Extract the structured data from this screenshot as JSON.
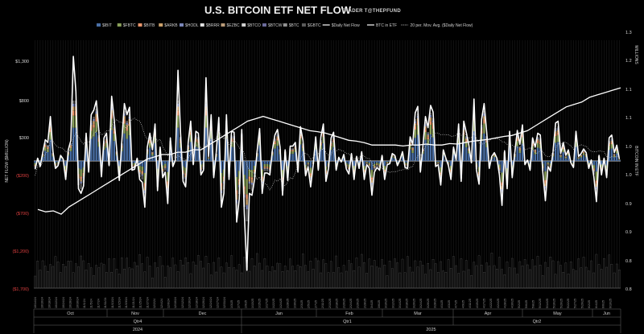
{
  "chart_data": {
    "type": "bar",
    "title": "U.S. BITCOIN ETF NET FLOW",
    "subtitle": "TRADER T@THEPFUND",
    "ylabel_left": "NET FLOW ($MILLION)",
    "ylabel_right": "BITCOIN IN ETF",
    "right_axis_unit": "MILLIONS",
    "ylim_left": [
      -1700,
      1800
    ],
    "ylim_right": [
      0.8,
      1.35
    ],
    "left_ticks": [
      {
        "label": "$1,300",
        "value": 1300
      },
      {
        "label": "$800",
        "value": 800
      },
      {
        "label": "$300",
        "value": 300
      },
      {
        "label": "($200)",
        "value": -200
      },
      {
        "label": "($700)",
        "value": -700
      },
      {
        "label": "($1,200)",
        "value": -1200
      },
      {
        "label": "($1,700)",
        "value": -1700
      }
    ],
    "right_ticks": [
      "1.3",
      "1.2",
      "1.1",
      "1.1",
      "1.0",
      "1.0",
      "0.9",
      "0.9",
      "0.8",
      "0.8"
    ],
    "legend": [
      {
        "name": "$IBIT",
        "color": "#4a6fa5",
        "kind": "box"
      },
      {
        "name": "$FBTC",
        "color": "#8aa05a",
        "kind": "box"
      },
      {
        "name": "$BITB",
        "color": "#e8956b",
        "kind": "box"
      },
      {
        "name": "$ARKB",
        "color": "#c9a06a",
        "kind": "box"
      },
      {
        "name": "$HODL",
        "color": "#7a86b8",
        "kind": "box"
      },
      {
        "name": "$BRRR",
        "color": "#e0e0e0",
        "kind": "box"
      },
      {
        "name": "$EZBC",
        "color": "#b89a78",
        "kind": "box"
      },
      {
        "name": "$BTCO",
        "color": "#d0d0d0",
        "kind": "box"
      },
      {
        "name": "$BTCW",
        "color": "#6a6a9a",
        "kind": "box"
      },
      {
        "name": "$BTC",
        "color": "#909090",
        "kind": "box"
      },
      {
        "name": "$GBTC",
        "color": "#5a5a5a",
        "kind": "box"
      },
      {
        "name": "$Daily Net Flow",
        "color": "#ffffff",
        "kind": "line"
      },
      {
        "name": "BTC in ETF",
        "color": "#ffffff",
        "kind": "line"
      },
      {
        "name": "20 per. Mov. Avg. ($Daily Net Flow)",
        "color": "#cccccc",
        "kind": "dotted"
      }
    ],
    "x_months": [
      "Oct",
      "Nov",
      "Dec",
      "Jan",
      "Feb",
      "Mar",
      "Apr",
      "May",
      "Jun"
    ],
    "x_quarters": [
      "Qtr4",
      "Qtr1",
      "Qtr2"
    ],
    "x_years": [
      "2024",
      "2025"
    ],
    "date_labels": [
      "10/14/24",
      "10/16/24",
      "10/18/24",
      "10/22/24",
      "10/24/24",
      "10/28/24",
      "10/30/24",
      "11/1/24",
      "11/5/24",
      "11/7/24",
      "11/11/24",
      "11/13/24",
      "11/15/24",
      "11/19/24",
      "11/21/24",
      "11/25/24",
      "11/27/24",
      "12/2/24",
      "12/4/24",
      "12/6/24",
      "12/10/24",
      "12/12/24",
      "12/16/24",
      "12/18/24",
      "12/20/24",
      "12/24/24",
      "12/27/24",
      "12/31/24",
      "1/3/25",
      "1/7/25",
      "1/9/25",
      "1/13/25",
      "1/15/25",
      "1/17/25",
      "1/22/25",
      "1/24/25",
      "1/28/25",
      "1/30/25",
      "2/3/25",
      "2/5/25",
      "2/7/25",
      "2/11/25",
      "2/13/25",
      "2/18/25",
      "2/20/25",
      "2/24/25",
      "2/26/25",
      "2/28/25",
      "3/4/25",
      "3/6/25",
      "3/10/25",
      "3/12/25",
      "3/14/25",
      "3/18/25",
      "3/20/25",
      "3/24/25",
      "3/26/25",
      "3/28/25",
      "4/1/25",
      "4/3/25",
      "4/7/25",
      "4/9/25",
      "4/11/25",
      "4/15/25",
      "4/17/25",
      "4/22/25",
      "4/24/25",
      "4/28/25",
      "4/30/25",
      "5/2/25",
      "5/6/25",
      "5/8/25",
      "5/12/25",
      "5/14/25",
      "5/16/25",
      "5/20/25",
      "5/22/25",
      "5/27/25",
      "5/29/25",
      "6/2/25",
      "6/4/25",
      "6/6/25",
      "6/10/25"
    ],
    "daily_net_flow": [
      -90,
      30,
      -60,
      90,
      230,
      200,
      480,
      100,
      -80,
      -50,
      60,
      20,
      -200,
      120,
      220,
      1180,
      750,
      -300,
      -350,
      -270,
      300,
      -120,
      500,
      550,
      650,
      320,
      -170,
      250,
      300,
      -50,
      700,
      450,
      120,
      -210,
      220,
      620,
      500,
      580,
      -100,
      -90,
      30,
      -200,
      -230,
      -500,
      150,
      300,
      120,
      400,
      -320,
      150,
      -180,
      -120,
      -460,
      250,
      -60,
      10,
      980,
      300,
      -220,
      -280,
      200,
      430,
      -40,
      320,
      300,
      -150,
      -100,
      900,
      50,
      500,
      -180,
      90,
      470,
      -500,
      -350,
      500,
      -200,
      320,
      310,
      -660,
      -410,
      340,
      -570,
      -1180,
      -350,
      -370,
      -200,
      100,
      350,
      -350,
      -130,
      -130,
      -150,
      120,
      280,
      340,
      150,
      -370,
      120,
      -210,
      160,
      160,
      200,
      -120,
      370,
      220,
      -160,
      -60,
      -280,
      -40,
      260,
      -100,
      260,
      400,
      -220,
      -80,
      250,
      310,
      -100,
      40,
      -10,
      70,
      -90,
      -140,
      80,
      -200,
      50,
      -80,
      100,
      -200,
      -40,
      -80,
      -370,
      -120,
      -70,
      -100,
      60,
      -200,
      -40,
      -30,
      80,
      60,
      -50,
      10,
      100,
      -70,
      -80,
      260,
      180,
      520,
      590,
      -120,
      160,
      480,
      360,
      600,
      530,
      -60,
      -40,
      -260,
      120,
      30,
      -50,
      -200,
      150,
      10,
      400,
      -220,
      430,
      310,
      170,
      -20,
      670,
      -100,
      -250,
      450,
      620,
      310,
      -80,
      50,
      90,
      30,
      -150,
      -480,
      110,
      -300,
      320,
      -180,
      90,
      330,
      180,
      390,
      -40,
      10,
      -100,
      250,
      150,
      300,
      280,
      -120,
      -430,
      -60,
      -110,
      100,
      410,
      430,
      80,
      200,
      60,
      120,
      -20,
      -70,
      320,
      50,
      80,
      130,
      90,
      -80,
      10,
      -170,
      -440,
      60,
      -150,
      30,
      -180,
      250,
      280,
      90,
      170,
      20
    ],
    "btc_in_etf_millions": [
      0.965,
      0.96,
      0.962,
      0.955,
      0.97,
      0.98,
      0.99,
      1.0,
      1.01,
      1.02,
      1.03,
      1.04,
      1.05,
      1.06,
      1.07,
      1.075,
      1.08,
      1.08,
      1.085,
      1.085,
      1.09,
      1.09,
      1.1,
      1.11,
      1.12,
      1.13,
      1.14,
      1.15,
      1.155,
      1.16,
      1.155,
      1.15,
      1.145,
      1.14,
      1.135,
      1.13,
      1.128,
      1.125,
      1.12,
      1.115,
      1.11,
      1.108,
      1.105,
      1.1,
      1.1,
      1.1,
      1.1,
      1.098,
      1.1,
      1.1,
      1.102,
      1.1,
      1.1,
      1.103,
      1.102,
      1.105,
      1.108,
      1.11,
      1.112,
      1.115,
      1.118,
      1.12,
      1.125,
      1.13,
      1.14,
      1.15,
      1.16,
      1.17,
      1.18,
      1.185,
      1.19,
      1.2,
      1.205,
      1.21,
      1.215,
      1.22
    ]
  }
}
